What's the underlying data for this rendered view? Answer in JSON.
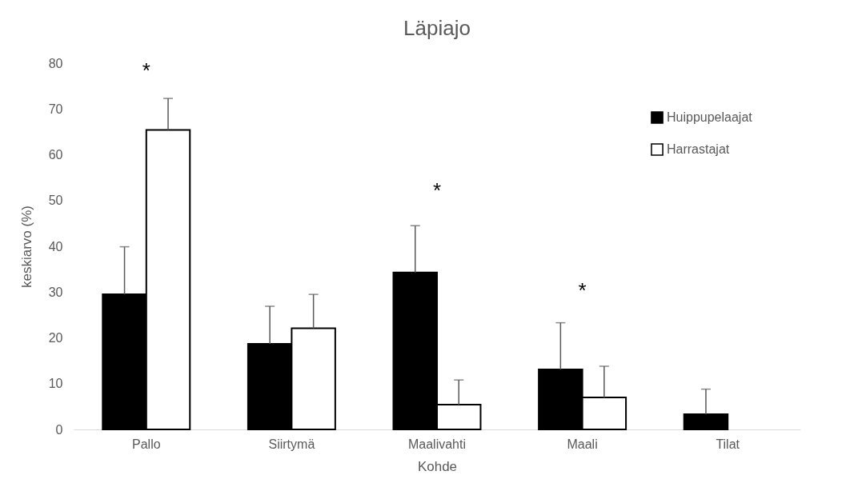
{
  "chart_data": {
    "type": "bar",
    "title": "Läpiajo",
    "xlabel": "Kohde",
    "ylabel": "keskiarvo (%)",
    "categories": [
      "Pallo",
      "Siirtymä",
      "Maalivahti",
      "Maali",
      "Tilat"
    ],
    "series": [
      {
        "name": "Huippupelaajat",
        "color": "#000000",
        "values": [
          29.5,
          18.7,
          34.3,
          13.1,
          3.3
        ],
        "errors": [
          [
            29.5,
            39.9
          ],
          [
            18.7,
            26.9
          ],
          [
            34.3,
            44.5
          ],
          [
            13.1,
            23.3
          ],
          [
            3.3,
            8.8
          ]
        ]
      },
      {
        "name": "Harrastajat",
        "color": "#ffffff",
        "values": [
          65.4,
          22.1,
          5.4,
          7.0,
          null
        ],
        "errors": [
          [
            65.4,
            72.3
          ],
          [
            22.1,
            29.5
          ],
          [
            5.4,
            10.8
          ],
          [
            7.0,
            13.8
          ],
          null
        ]
      }
    ],
    "ylim": [
      0,
      80
    ],
    "yticks": [
      0,
      10,
      20,
      30,
      40,
      50,
      60,
      70,
      80
    ],
    "grid": false,
    "legend": "top right",
    "annotations": [
      "*",
      "*",
      "*"
    ]
  }
}
